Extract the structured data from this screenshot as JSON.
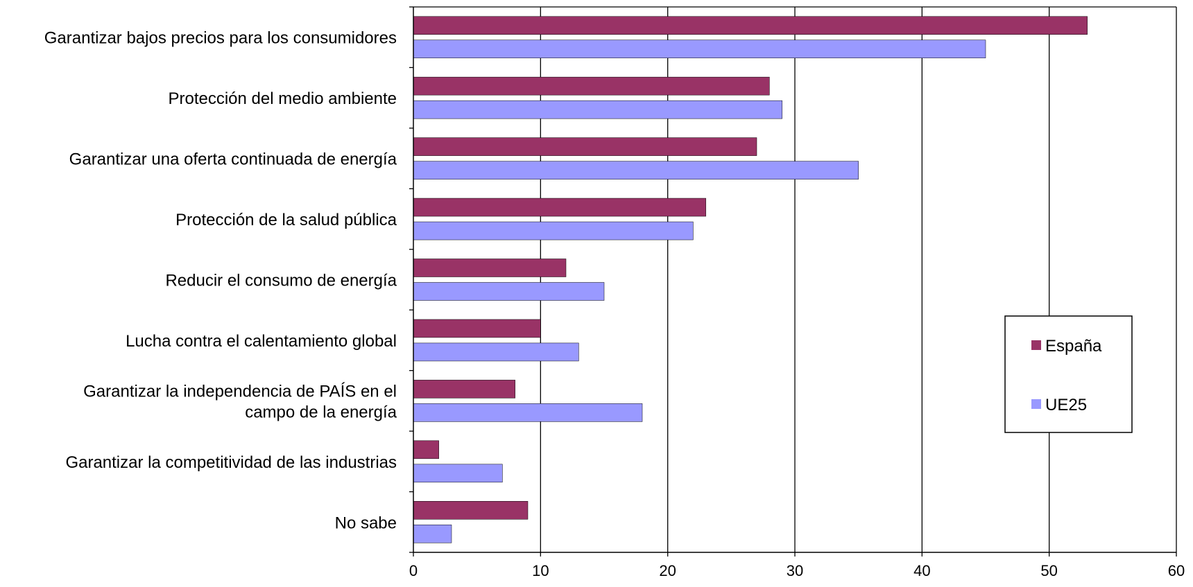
{
  "colors": {
    "espana": "#993366",
    "ue25": "#9999ff",
    "grid": "#000000"
  },
  "chart_data": {
    "type": "bar",
    "orientation": "horizontal",
    "categories": [
      [
        "Garantizar bajos precios para los consumidores"
      ],
      [
        "Protección del medio ambiente"
      ],
      [
        "Garantizar una oferta continuada de energía"
      ],
      [
        "Protección de la salud pública"
      ],
      [
        "Reducir el consumo de energía"
      ],
      [
        "Lucha contra el calentamiento global"
      ],
      [
        "Garantizar la independencia de PAÍS en el",
        "campo de la energía"
      ],
      [
        "Garantizar la competitividad de las industrias"
      ],
      [
        "No sabe"
      ]
    ],
    "series": [
      {
        "name": "España",
        "values": [
          53,
          28,
          27,
          23,
          12,
          10,
          8,
          2,
          9
        ]
      },
      {
        "name": "UE25",
        "values": [
          45,
          29,
          35,
          22,
          15,
          13,
          18,
          7,
          3
        ]
      }
    ],
    "xlim": [
      0,
      60
    ],
    "xticks": [
      "0",
      "10",
      "20",
      "30",
      "40",
      "50",
      "60"
    ],
    "grid": "vertical",
    "legend_position": "right"
  }
}
